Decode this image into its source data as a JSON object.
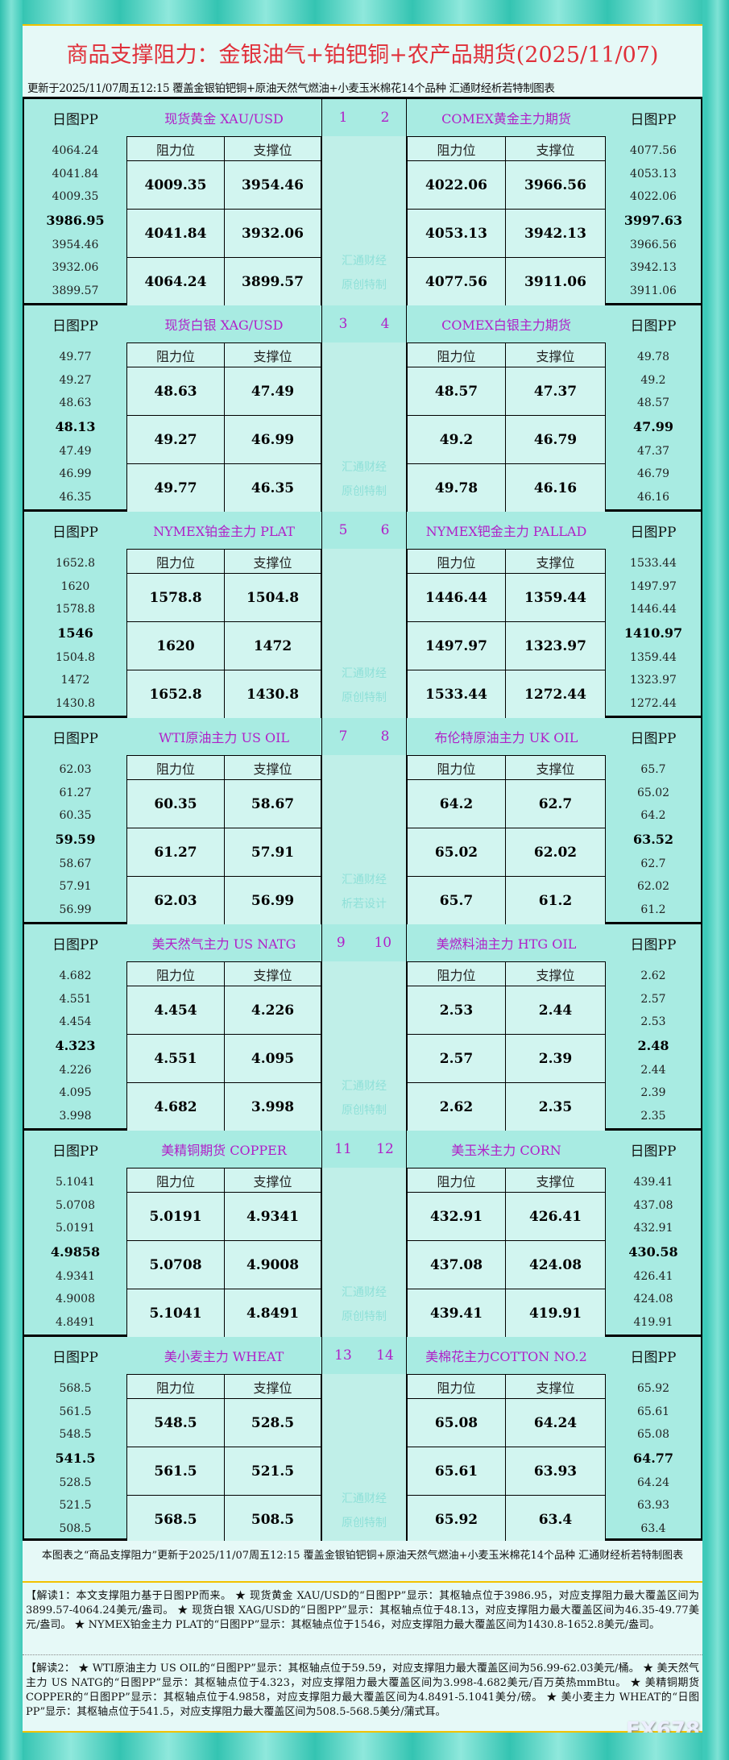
{
  "header": {
    "title": "商品支撑阻力：金银油气+铂钯铜+农产品期货(2025/11/07)",
    "subtitle": "更新于2025/11/07周五12:15  覆盖金银铂钯铜+原油天然气燃油+小麦玉米棉花14个品种  汇通财经析若特制图表"
  },
  "labels": {
    "pp": "日图PP",
    "resistance": "阻力位",
    "support": "支撑位"
  },
  "blocks": [
    {
      "nums": [
        "1",
        "2"
      ],
      "watermark": [
        "汇通财经",
        "原创特制"
      ],
      "left": {
        "name": "现货黄金 XAU/USD",
        "levels": [
          "4064.24",
          "4041.84",
          "4009.35",
          "3986.95",
          "3954.46",
          "3932.06",
          "3899.57"
        ]
      },
      "right": {
        "name": "COMEX黄金主力期货",
        "levels": [
          "4077.56",
          "4053.13",
          "4022.06",
          "3997.63",
          "3966.56",
          "3942.13",
          "3911.06"
        ]
      }
    },
    {
      "nums": [
        "3",
        "4"
      ],
      "watermark": [
        "汇通财经",
        "原创特制"
      ],
      "left": {
        "name": "现货白银 XAG/USD",
        "levels": [
          "49.77",
          "49.27",
          "48.63",
          "48.13",
          "47.49",
          "46.99",
          "46.35"
        ]
      },
      "right": {
        "name": "COMEX白银主力期货",
        "levels": [
          "49.78",
          "49.2",
          "48.57",
          "47.99",
          "47.37",
          "46.79",
          "46.16"
        ]
      }
    },
    {
      "nums": [
        "5",
        "6"
      ],
      "watermark": [
        "汇通财经",
        "原创特制"
      ],
      "left": {
        "name": "NYMEX铂金主力 PLAT",
        "levels": [
          "1652.8",
          "1620",
          "1578.8",
          "1546",
          "1504.8",
          "1472",
          "1430.8"
        ]
      },
      "right": {
        "name": "NYMEX钯金主力 PALLAD",
        "levels": [
          "1533.44",
          "1497.97",
          "1446.44",
          "1410.97",
          "1359.44",
          "1323.97",
          "1272.44"
        ]
      }
    },
    {
      "nums": [
        "7",
        "8"
      ],
      "watermark": [
        "汇通财经",
        "析若设计"
      ],
      "left": {
        "name": "WTI原油主力 US OIL",
        "levels": [
          "62.03",
          "61.27",
          "60.35",
          "59.59",
          "58.67",
          "57.91",
          "56.99"
        ]
      },
      "right": {
        "name": "布伦特原油主力 UK OIL",
        "levels": [
          "65.7",
          "65.02",
          "64.2",
          "63.52",
          "62.7",
          "62.02",
          "61.2"
        ]
      }
    },
    {
      "nums": [
        "9",
        "10"
      ],
      "watermark": [
        "汇通财经",
        "原创特制"
      ],
      "left": {
        "name": "美天然气主力 US NATG",
        "levels": [
          "4.682",
          "4.551",
          "4.454",
          "4.323",
          "4.226",
          "4.095",
          "3.998"
        ]
      },
      "right": {
        "name": "美燃料油主力 HTG OIL",
        "levels": [
          "2.62",
          "2.57",
          "2.53",
          "2.48",
          "2.44",
          "2.39",
          "2.35"
        ]
      }
    },
    {
      "nums": [
        "11",
        "12"
      ],
      "watermark": [
        "汇通财经",
        "原创特制"
      ],
      "left": {
        "name": "美精铜期货 COPPER",
        "levels": [
          "5.1041",
          "5.0708",
          "5.0191",
          "4.9858",
          "4.9341",
          "4.9008",
          "4.8491"
        ]
      },
      "right": {
        "name": "美玉米主力 CORN",
        "levels": [
          "439.41",
          "437.08",
          "432.91",
          "430.58",
          "426.41",
          "424.08",
          "419.91"
        ]
      }
    },
    {
      "nums": [
        "13",
        "14"
      ],
      "watermark": [
        "汇通财经",
        "原创特制"
      ],
      "left": {
        "name": "美小麦主力 WHEAT",
        "levels": [
          "568.5",
          "561.5",
          "548.5",
          "541.5",
          "528.5",
          "521.5",
          "508.5"
        ]
      },
      "right": {
        "name": "美棉花主力COTTON NO.2",
        "levels": [
          "65.92",
          "65.61",
          "65.08",
          "64.77",
          "64.24",
          "63.93",
          "63.4"
        ]
      }
    }
  ],
  "footer": {
    "note": "本图表之“商品支撑阻力”更新于2025/11/07周五12:15  覆盖金银铂钯铜+原油天然气燃油+小麦玉米棉花14个品种  汇通财经析若特制图表",
    "jiedu1": "【解读1：本文支撑阻力基于日图PP而来。 ★ 现货黄金 XAU/USD的“日图PP”显示：其枢轴点位于3986.95，对应支撑阻力最大覆盖区间为3899.57-4064.24美元/盎司。 ★ 现货白银 XAG/USD的“日图PP”显示：其枢轴点位于48.13，对应支撑阻力最大覆盖区间为46.35-49.77美元/盎司。 ★ NYMEX铂金主力 PLAT的“日图PP”显示：其枢轴点位于1546，对应支撑阻力最大覆盖区间为1430.8-1652.8美元/盎司。",
    "jiedu2": "【解读2： ★ WTI原油主力 US OIL的“日图PP”显示：其枢轴点位于59.59，对应支撑阻力最大覆盖区间为56.99-62.03美元/桶。 ★ 美天然气主力 US NATG的“日图PP”显示：其枢轴点位于4.323，对应支撑阻力最大覆盖区间为3.998-4.682美元/百万英热mmBtu。 ★ 美精铜期货 COPPER的“日图PP”显示：其枢轴点位于4.9858，对应支撑阻力最大覆盖区间为4.8491-5.1041美分/磅。 ★ 美小麦主力 WHEAT的“日图PP”显示：其枢轴点位于541.5，对应支撑阻力最大覆盖区间为508.5-568.5美分/蒲式耳。",
    "logo": "FX678"
  },
  "colors": {
    "title": "#e0303a",
    "name": "#b020c8",
    "frame": "#3ecab9",
    "cell": "#d2f5f0"
  }
}
